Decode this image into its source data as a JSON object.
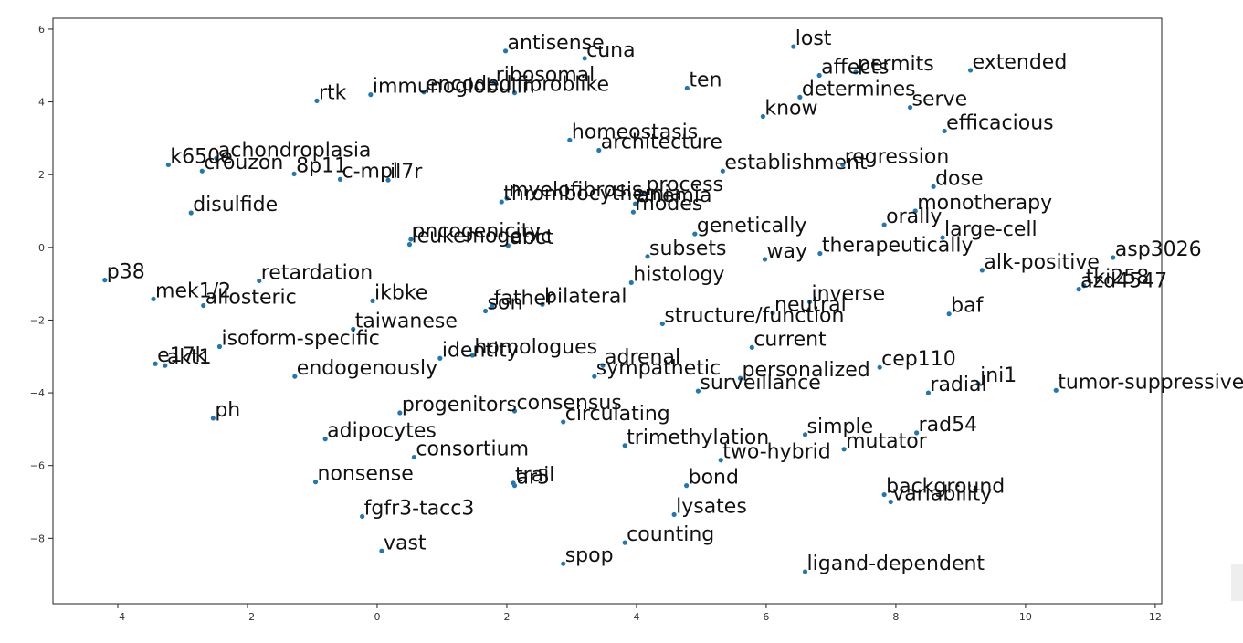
{
  "chart_data": {
    "type": "scatter",
    "xlim": [
      -5,
      12.1
    ],
    "ylim": [
      -9.8,
      6.3
    ],
    "x_ticks": [
      -4,
      -2,
      0,
      2,
      4,
      6,
      8,
      10,
      12
    ],
    "y_ticks": [
      6,
      4,
      2,
      0,
      -2,
      -4,
      -6,
      -8
    ],
    "x_tick_labels": [
      "−4",
      "−2",
      "0",
      "2",
      "4",
      "6",
      "8",
      "10",
      "12"
    ],
    "y_tick_labels": [
      "6",
      "4",
      "2",
      "0",
      "−2",
      "−4",
      "−6",
      "−8"
    ],
    "point_color": "#1f77b4",
    "grid": false,
    "points": [
      {
        "label": "antisense",
        "x": 1.98,
        "y": 5.4
      },
      {
        "label": "cuna",
        "x": 3.2,
        "y": 5.2
      },
      {
        "label": "lost",
        "x": 6.42,
        "y": 5.52
      },
      {
        "label": "affects",
        "x": 6.82,
        "y": 4.73
      },
      {
        "label": "permits",
        "x": 7.38,
        "y": 4.82
      },
      {
        "label": "extended",
        "x": 9.15,
        "y": 4.87
      },
      {
        "label": "ribosomal",
        "x": 1.8,
        "y": 4.52
      },
      {
        "label": "encoded",
        "x": 0.72,
        "y": 4.27
      },
      {
        "label": "fibroblike",
        "x": 2.12,
        "y": 4.25
      },
      {
        "label": "immunoglobulin",
        "x": -0.1,
        "y": 4.2
      },
      {
        "label": "ten",
        "x": 4.78,
        "y": 4.38
      },
      {
        "label": "determines",
        "x": 6.52,
        "y": 4.13
      },
      {
        "label": "rtk",
        "x": -0.93,
        "y": 4.03
      },
      {
        "label": "serve",
        "x": 8.22,
        "y": 3.85
      },
      {
        "label": "know",
        "x": 5.95,
        "y": 3.6
      },
      {
        "label": "efficacious",
        "x": 8.75,
        "y": 3.2
      },
      {
        "label": "homeostasis",
        "x": 2.97,
        "y": 2.95
      },
      {
        "label": "architecture",
        "x": 3.42,
        "y": 2.67
      },
      {
        "label": "regression",
        "x": 7.18,
        "y": 2.27
      },
      {
        "label": "establishment",
        "x": 5.33,
        "y": 2.1
      },
      {
        "label": "achondroplasia",
        "x": -2.48,
        "y": 2.45
      },
      {
        "label": "k650e",
        "x": -3.22,
        "y": 2.27
      },
      {
        "label": "crouzon",
        "x": -2.7,
        "y": 2.1
      },
      {
        "label": "8p11",
        "x": -1.28,
        "y": 2.02
      },
      {
        "label": "c-mpl",
        "x": -0.57,
        "y": 1.87
      },
      {
        "label": "il7r",
        "x": 0.17,
        "y": 1.85
      },
      {
        "label": "dose",
        "x": 8.58,
        "y": 1.67
      },
      {
        "label": "process",
        "x": 4.12,
        "y": 1.5
      },
      {
        "label": "myelofibrosis",
        "x": 2.0,
        "y": 1.35
      },
      {
        "label": "anemia",
        "x": 3.98,
        "y": 1.2
      },
      {
        "label": "thrombocythemia",
        "x": 1.92,
        "y": 1.25
      },
      {
        "label": "modes",
        "x": 3.95,
        "y": 0.97
      },
      {
        "label": "disulfide",
        "x": -2.87,
        "y": 0.95
      },
      {
        "label": "monotherapy",
        "x": 8.3,
        "y": 1.0
      },
      {
        "label": "orally",
        "x": 7.82,
        "y": 0.62
      },
      {
        "label": "genetically",
        "x": 4.9,
        "y": 0.37
      },
      {
        "label": "large-cell",
        "x": 8.72,
        "y": 0.27
      },
      {
        "label": "oncogenicity",
        "x": 0.52,
        "y": 0.22
      },
      {
        "label": "leukemogenic",
        "x": 0.5,
        "y": 0.08
      },
      {
        "label": "abct",
        "x": 2.02,
        "y": 0.05
      },
      {
        "label": "subsets",
        "x": 4.17,
        "y": -0.25
      },
      {
        "label": "way",
        "x": 5.98,
        "y": -0.33
      },
      {
        "label": "therapeutically",
        "x": 6.83,
        "y": -0.17
      },
      {
        "label": "asp3026",
        "x": 11.35,
        "y": -0.28
      },
      {
        "label": "alk-positive",
        "x": 9.33,
        "y": -0.63
      },
      {
        "label": "p38",
        "x": -4.2,
        "y": -0.9
      },
      {
        "label": "retardation",
        "x": -1.82,
        "y": -0.92
      },
      {
        "label": "histology",
        "x": 3.92,
        "y": -0.97
      },
      {
        "label": "tki258",
        "x": 10.9,
        "y": -1.05
      },
      {
        "label": "azd4547",
        "x": 10.82,
        "y": -1.15
      },
      {
        "label": "mek1/2",
        "x": -3.45,
        "y": -1.42
      },
      {
        "label": "allosteric",
        "x": -2.68,
        "y": -1.6
      },
      {
        "label": "ikbke",
        "x": -0.07,
        "y": -1.47
      },
      {
        "label": "father",
        "x": 1.77,
        "y": -1.62
      },
      {
        "label": "bilateral",
        "x": 2.55,
        "y": -1.57
      },
      {
        "label": "son",
        "x": 1.67,
        "y": -1.75
      },
      {
        "label": "inverse",
        "x": 6.67,
        "y": -1.5
      },
      {
        "label": "neutral",
        "x": 6.1,
        "y": -1.8
      },
      {
        "label": "baf",
        "x": 8.82,
        "y": -1.83
      },
      {
        "label": "structure/function",
        "x": 4.4,
        "y": -2.1
      },
      {
        "label": "taiwanese",
        "x": -0.37,
        "y": -2.25
      },
      {
        "label": "current",
        "x": 5.78,
        "y": -2.75
      },
      {
        "label": "isoform-specific",
        "x": -2.43,
        "y": -2.73
      },
      {
        "label": "identity",
        "x": 0.97,
        "y": -3.05
      },
      {
        "label": "homologues",
        "x": 1.47,
        "y": -2.97
      },
      {
        "label": "adrenal",
        "x": 3.48,
        "y": -3.25
      },
      {
        "label": "cep110",
        "x": 7.75,
        "y": -3.3
      },
      {
        "label": "sympathetic",
        "x": 3.35,
        "y": -3.55
      },
      {
        "label": "personalized",
        "x": 5.6,
        "y": -3.6
      },
      {
        "label": "e17k",
        "x": -3.42,
        "y": -3.2
      },
      {
        "label": "akt1",
        "x": -3.27,
        "y": -3.25
      },
      {
        "label": "endogenously",
        "x": -1.27,
        "y": -3.55
      },
      {
        "label": "surveillance",
        "x": 4.95,
        "y": -3.95
      },
      {
        "label": "radial",
        "x": 8.5,
        "y": -4.0
      },
      {
        "label": "jni1",
        "x": 9.27,
        "y": -3.75
      },
      {
        "label": "tumor-suppressive",
        "x": 10.47,
        "y": -3.93
      },
      {
        "label": "progenitors",
        "x": 0.35,
        "y": -4.55
      },
      {
        "label": "consensus",
        "x": 2.12,
        "y": -4.5
      },
      {
        "label": "ph",
        "x": -2.53,
        "y": -4.7
      },
      {
        "label": "circulating",
        "x": 2.87,
        "y": -4.8
      },
      {
        "label": "simple",
        "x": 6.6,
        "y": -5.15
      },
      {
        "label": "rad54",
        "x": 8.32,
        "y": -5.1
      },
      {
        "label": "adipocytes",
        "x": -0.8,
        "y": -5.27
      },
      {
        "label": "trimethylation",
        "x": 3.82,
        "y": -5.45
      },
      {
        "label": "mutator",
        "x": 7.2,
        "y": -5.55
      },
      {
        "label": "consortium",
        "x": 0.57,
        "y": -5.77
      },
      {
        "label": "two-hybrid",
        "x": 5.3,
        "y": -5.85
      },
      {
        "label": "nonsense",
        "x": -0.95,
        "y": -6.45
      },
      {
        "label": "trail",
        "x": 2.1,
        "y": -6.48
      },
      {
        "label": "ar5",
        "x": 2.12,
        "y": -6.55
      },
      {
        "label": "bond",
        "x": 4.77,
        "y": -6.55
      },
      {
        "label": "background",
        "x": 7.82,
        "y": -6.8
      },
      {
        "label": "variability",
        "x": 7.92,
        "y": -7.0
      },
      {
        "label": "lysates",
        "x": 4.58,
        "y": -7.35
      },
      {
        "label": "fgfr3-tacc3",
        "x": -0.23,
        "y": -7.4
      },
      {
        "label": "counting",
        "x": 3.82,
        "y": -8.12
      },
      {
        "label": "vast",
        "x": 0.07,
        "y": -8.35
      },
      {
        "label": "spop",
        "x": 2.87,
        "y": -8.7
      },
      {
        "label": "ligand-dependent",
        "x": 6.6,
        "y": -8.92
      }
    ]
  }
}
